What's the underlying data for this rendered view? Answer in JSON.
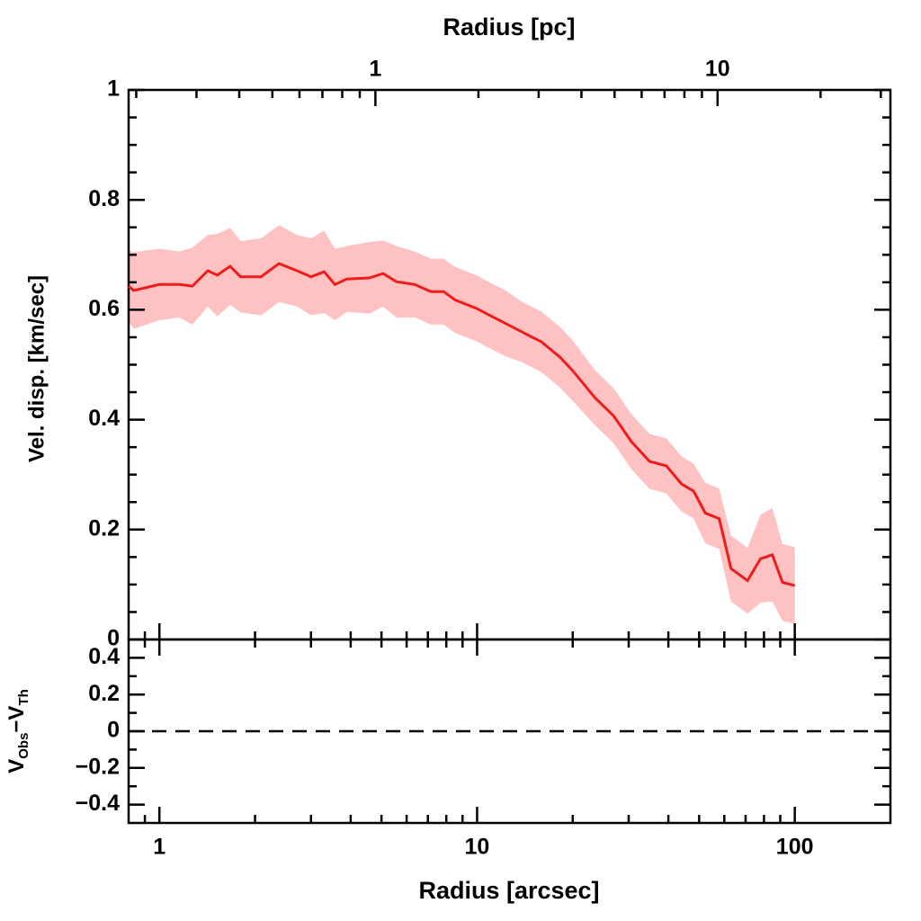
{
  "chart_data": [
    {
      "type": "line",
      "log_x": true,
      "xlim": [
        0.8,
        200
      ],
      "xticks": [
        1,
        10,
        100
      ],
      "xminorticks": [
        0.9,
        2,
        3,
        4,
        5,
        6,
        7,
        8,
        9,
        20,
        30,
        40,
        50,
        60,
        70,
        80,
        90
      ],
      "x2label": "Radius [pc]",
      "x2lim": [
        0.19,
        32
      ],
      "x2ticks": [
        1,
        10
      ],
      "x2minorticks": [
        0.2,
        0.3,
        0.4,
        0.5,
        0.6,
        0.7,
        0.8,
        0.9,
        2,
        3,
        4,
        5,
        6,
        7,
        8,
        9,
        20,
        30
      ],
      "ylabel": "Vel. disp. [km/sec]",
      "ylim": [
        0,
        1
      ],
      "yticks": [
        0,
        0.2,
        0.4,
        0.6,
        0.8,
        1
      ],
      "yminorticks": [
        0.05,
        0.1,
        0.15,
        0.25,
        0.3,
        0.35,
        0.45,
        0.5,
        0.55,
        0.65,
        0.7,
        0.75,
        0.85,
        0.9,
        0.95
      ],
      "series": [
        {
          "color": "#ee1c1c",
          "band_color": "#ffc2c2",
          "x": [
            0.8,
            0.83,
            1.0,
            1.155,
            1.27,
            1.42,
            1.52,
            1.67,
            1.8,
            2.09,
            2.38,
            2.71,
            3.0,
            3.3,
            3.57,
            3.89,
            4.58,
            5.06,
            5.57,
            6.36,
            7.16,
            7.84,
            8.52,
            10,
            11.1,
            12.3,
            13.8,
            14.9,
            15.9,
            18.2,
            20,
            23.5,
            26.9,
            30.6,
            34.9,
            39.4,
            44,
            48,
            52.3,
            57.8,
            63,
            71,
            78,
            85,
            91.5,
            100
          ],
          "values": [
            0.643,
            0.635,
            0.646,
            0.646,
            0.643,
            0.671,
            0.663,
            0.679,
            0.66,
            0.66,
            0.684,
            0.671,
            0.66,
            0.669,
            0.646,
            0.656,
            0.658,
            0.666,
            0.651,
            0.646,
            0.633,
            0.633,
            0.618,
            0.602,
            0.588,
            0.575,
            0.56,
            0.55,
            0.542,
            0.514,
            0.489,
            0.44,
            0.407,
            0.36,
            0.324,
            0.316,
            0.283,
            0.27,
            0.23,
            0.22,
            0.129,
            0.107,
            0.147,
            0.154,
            0.104,
            0.098
          ],
          "errors": [
            0.065,
            0.07,
            0.065,
            0.06,
            0.07,
            0.065,
            0.075,
            0.07,
            0.065,
            0.07,
            0.07,
            0.065,
            0.07,
            0.075,
            0.065,
            0.06,
            0.065,
            0.06,
            0.065,
            0.06,
            0.06,
            0.06,
            0.06,
            0.06,
            0.06,
            0.06,
            0.055,
            0.055,
            0.055,
            0.055,
            0.055,
            0.05,
            0.05,
            0.05,
            0.05,
            0.05,
            0.05,
            0.05,
            0.055,
            0.055,
            0.06,
            0.06,
            0.08,
            0.085,
            0.07,
            0.07
          ]
        }
      ]
    },
    {
      "type": "residual",
      "log_x": true,
      "xlabel": "Radius [arcsec]",
      "xlim": [
        0.8,
        200
      ],
      "xticks": [
        1,
        10,
        100
      ],
      "xminorticks": [
        0.9,
        2,
        3,
        4,
        5,
        6,
        7,
        8,
        9,
        20,
        30,
        40,
        50,
        60,
        70,
        80,
        90
      ],
      "ylabel_parts": [
        "V",
        "Obs",
        "−V",
        "Th"
      ],
      "ylim": [
        -0.5,
        0.5
      ],
      "yticks": [
        {
          "value": -0.4,
          "label": "−0.4"
        },
        {
          "value": -0.2,
          "label": "−0.2"
        },
        0,
        0.2,
        0.4
      ],
      "yminorticks": [
        -0.3,
        -0.1,
        0.1,
        0.3
      ],
      "hline": 0,
      "hline_style": "dashed"
    }
  ]
}
